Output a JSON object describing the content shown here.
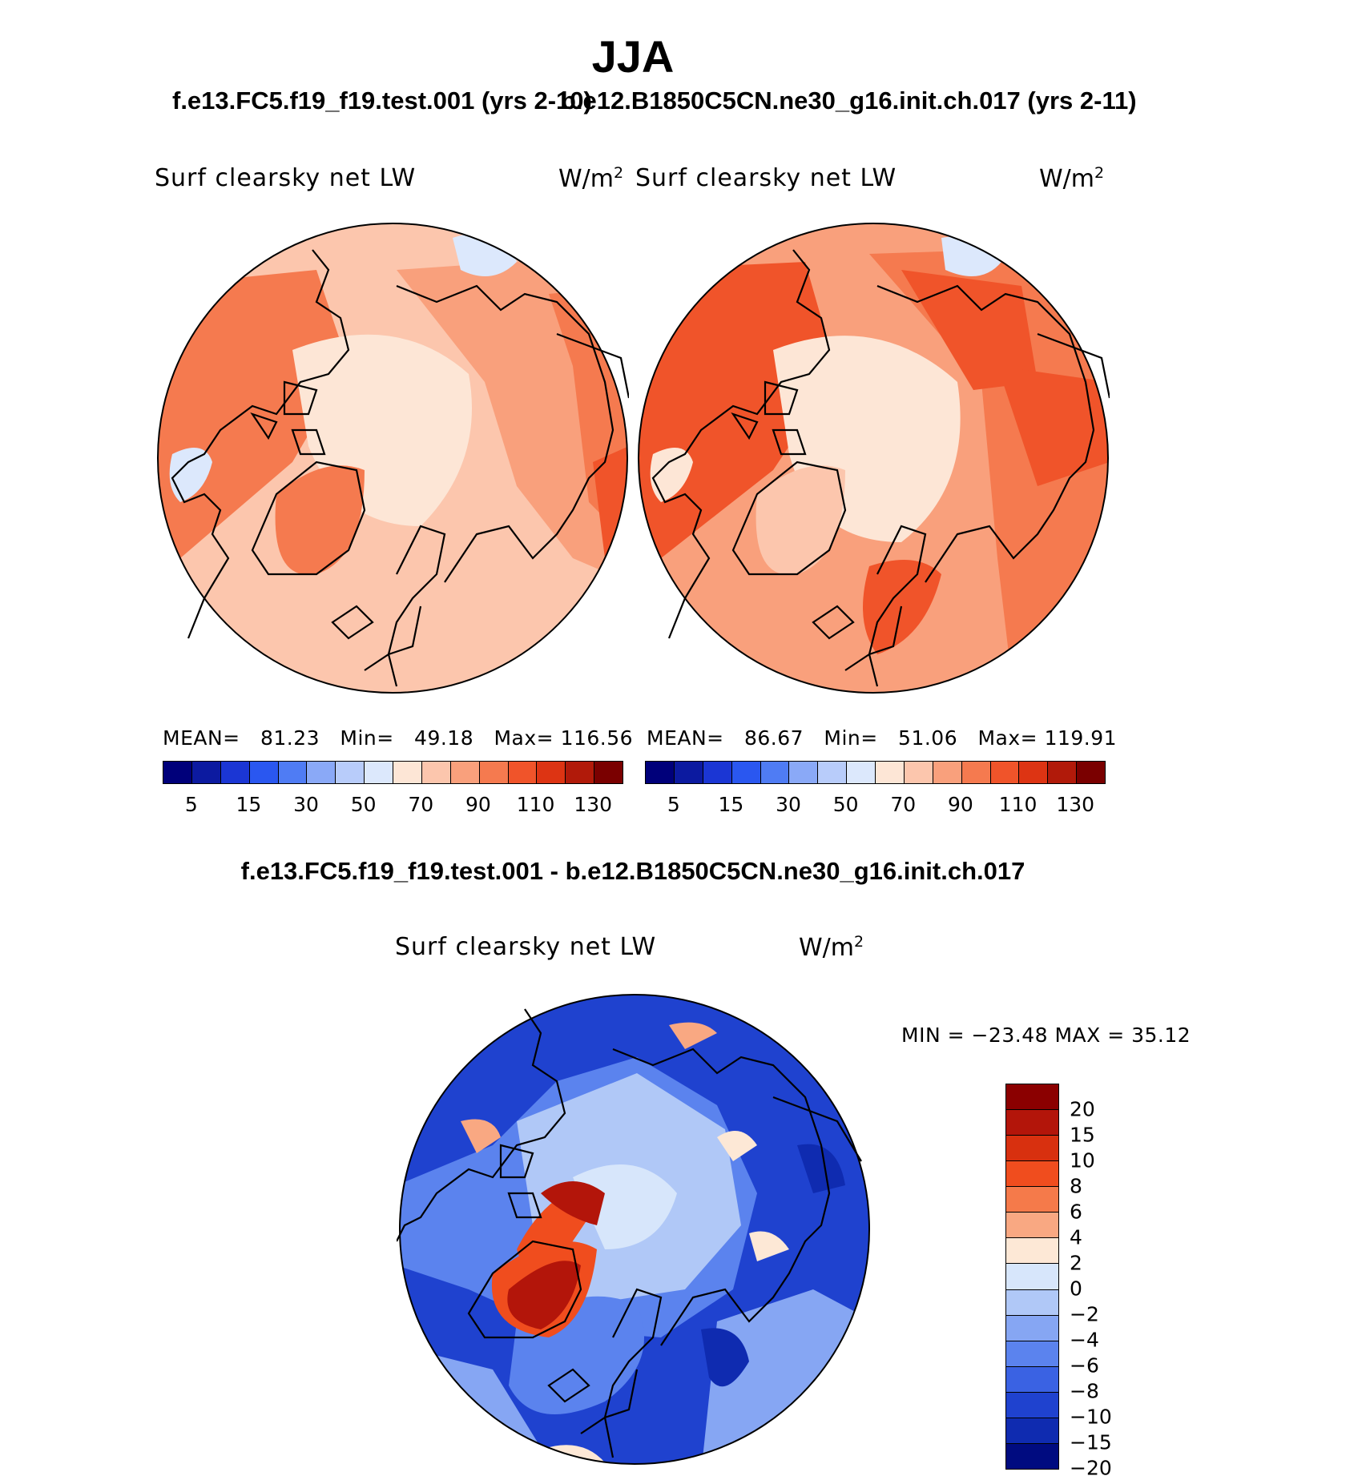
{
  "title": "JJA",
  "panel_left": {
    "case_title": "f.e13.FC5.f19_f19.test.001 (yrs 2-10)",
    "variable": "Surf clearsky net LW",
    "units": "W/m",
    "units_sup": "2",
    "stats": {
      "mean_label": "MEAN=",
      "mean": "81.23",
      "min_label": "Min=",
      "min": "49.18",
      "max_label": "Max=",
      "max": "116.56"
    }
  },
  "panel_right": {
    "case_title": "b.e12.B1850C5CN.ne30_g16.init.ch.017 (yrs 2-11)",
    "variable": "Surf clearsky net LW",
    "units": "W/m",
    "units_sup": "2",
    "stats": {
      "mean_label": "MEAN=",
      "mean": "86.67",
      "min_label": "Min=",
      "min": "51.06",
      "max_label": "Max=",
      "max": "119.91"
    }
  },
  "abs_colorbar": {
    "colors": [
      "#00007a",
      "#0c1aa0",
      "#1b36d4",
      "#2a57f0",
      "#4f7cf4",
      "#8aa9f7",
      "#b8ccfa",
      "#dce8fc",
      "#fde6d6",
      "#fcc6ad",
      "#f9a07c",
      "#f57a4f",
      "#f0542a",
      "#dd3413",
      "#b11a0a",
      "#7a0000"
    ],
    "tick_labels": [
      "5",
      "15",
      "30",
      "50",
      "70",
      "90",
      "110",
      "130"
    ]
  },
  "diff_panel": {
    "title": "f.e13.FC5.f19_f19.test.001 - b.e12.B1850C5CN.ne30_g16.init.ch.017",
    "variable": "Surf clearsky net LW",
    "units": "W/m",
    "units_sup": "2",
    "minmax": "MIN = −23.48 MAX =   35.12"
  },
  "diff_colorbar": {
    "colors": [
      "#8b0000",
      "#b3150a",
      "#d8300f",
      "#f04d1e",
      "#f57a4a",
      "#f9a882",
      "#fde8d6",
      "#d7e6fb",
      "#b0c8f7",
      "#86a6f3",
      "#5b83ee",
      "#3a62e3",
      "#1f42cf",
      "#0f2bb0",
      "#000b80"
    ],
    "tick_labels": [
      "20",
      "15",
      "10",
      "8",
      "6",
      "4",
      "2",
      "0",
      "−2",
      "−4",
      "−6",
      "−8",
      "−10",
      "−15",
      "−20"
    ]
  }
}
